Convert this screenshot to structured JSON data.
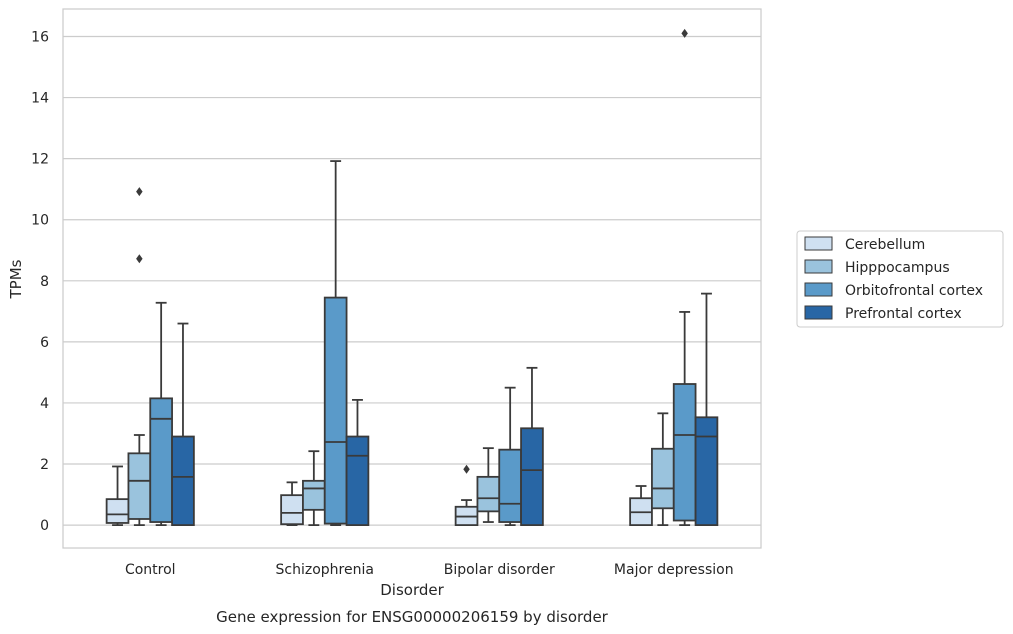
{
  "chart_data": {
    "type": "box",
    "title": "",
    "caption": "Gene expression for ENSG00000206159 by disorder",
    "xlabel": "Disorder",
    "ylabel": "TPMs",
    "ylim": [
      -0.75,
      16.9
    ],
    "yticks": [
      0,
      2,
      4,
      6,
      8,
      10,
      12,
      14,
      16
    ],
    "grid": "horizontal",
    "legend_position": "right",
    "categories": [
      "Control",
      "Schizophrenia",
      "Bipolar disorder",
      "Major depression"
    ],
    "series": [
      {
        "name": "Cerebellum",
        "color": "#cfe0f1",
        "boxes": [
          {
            "whisker_low": 0.0,
            "q1": 0.07,
            "median": 0.35,
            "q3": 0.85,
            "whisker_high": 1.92,
            "outliers": []
          },
          {
            "whisker_low": 0.0,
            "q1": 0.03,
            "median": 0.4,
            "q3": 0.98,
            "whisker_high": 1.4,
            "outliers": []
          },
          {
            "whisker_low": 0.0,
            "q1": 0.0,
            "median": 0.28,
            "q3": 0.6,
            "whisker_high": 0.82,
            "outliers": [
              1.83
            ]
          },
          {
            "whisker_low": 0.0,
            "q1": 0.0,
            "median": 0.42,
            "q3": 0.88,
            "whisker_high": 1.28,
            "outliers": []
          }
        ]
      },
      {
        "name": "Hipppocampus",
        "color": "#9ac3dd",
        "boxes": [
          {
            "whisker_low": 0.0,
            "q1": 0.2,
            "median": 1.45,
            "q3": 2.35,
            "whisker_high": 2.95,
            "outliers": [
              8.72,
              10.92
            ]
          },
          {
            "whisker_low": 0.0,
            "q1": 0.5,
            "median": 1.2,
            "q3": 1.45,
            "whisker_high": 2.42,
            "outliers": []
          },
          {
            "whisker_low": 0.1,
            "q1": 0.45,
            "median": 0.88,
            "q3": 1.58,
            "whisker_high": 2.52,
            "outliers": []
          },
          {
            "whisker_low": 0.0,
            "q1": 0.55,
            "median": 1.2,
            "q3": 2.5,
            "whisker_high": 3.66,
            "outliers": []
          }
        ]
      },
      {
        "name": "Orbitofrontal cortex",
        "color": "#5a9ac9",
        "boxes": [
          {
            "whisker_low": 0.0,
            "q1": 0.1,
            "median": 3.48,
            "q3": 4.15,
            "whisker_high": 7.28,
            "outliers": []
          },
          {
            "whisker_low": 0.0,
            "q1": 0.05,
            "median": 2.72,
            "q3": 7.45,
            "whisker_high": 11.92,
            "outliers": []
          },
          {
            "whisker_low": 0.0,
            "q1": 0.1,
            "median": 0.7,
            "q3": 2.47,
            "whisker_high": 4.5,
            "outliers": []
          },
          {
            "whisker_low": 0.0,
            "q1": 0.15,
            "median": 2.95,
            "q3": 4.62,
            "whisker_high": 6.98,
            "outliers": [
              16.1
            ]
          }
        ]
      },
      {
        "name": "Prefrontal cortex",
        "color": "#2866a5",
        "boxes": [
          {
            "whisker_low": 0.0,
            "q1": 0.0,
            "median": 1.58,
            "q3": 2.9,
            "whisker_high": 6.6,
            "outliers": []
          },
          {
            "whisker_low": 0.0,
            "q1": 0.0,
            "median": 2.27,
            "q3": 2.9,
            "whisker_high": 4.1,
            "outliers": []
          },
          {
            "whisker_low": 0.0,
            "q1": 0.0,
            "median": 1.8,
            "q3": 3.17,
            "whisker_high": 5.15,
            "outliers": []
          },
          {
            "whisker_low": 0.0,
            "q1": 0.0,
            "median": 2.9,
            "q3": 3.53,
            "whisker_high": 7.58,
            "outliers": []
          }
        ]
      }
    ]
  }
}
